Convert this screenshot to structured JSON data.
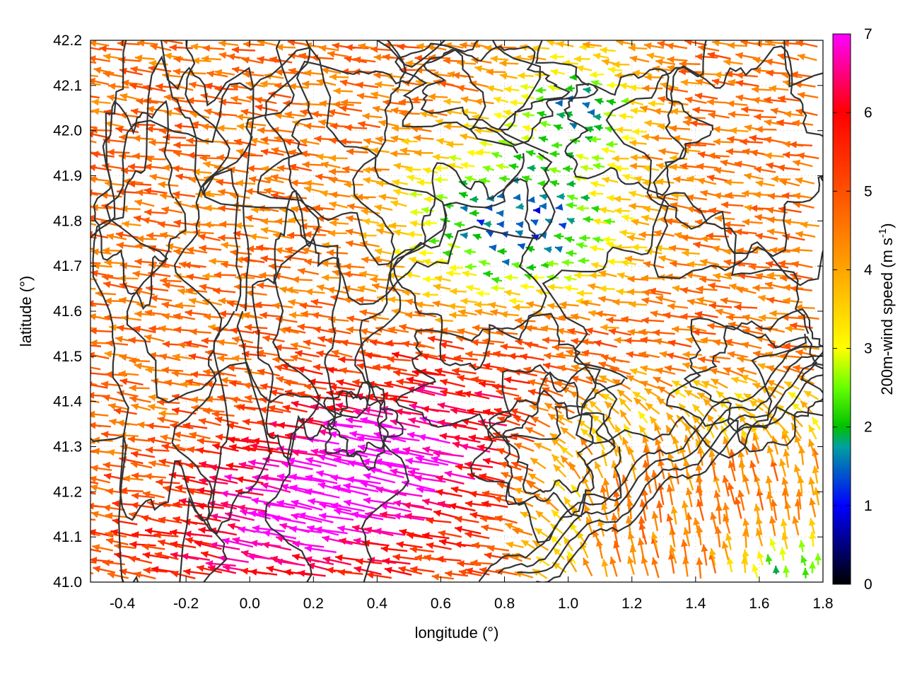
{
  "chart_data": {
    "type": "vector-field",
    "xlabel": "longitude (°)",
    "ylabel": "latitude (°)",
    "xlim": [
      -0.5,
      1.8
    ],
    "ylim": [
      41.0,
      42.2
    ],
    "xticks": [
      "-0.4",
      "-0.2",
      "0.0",
      "0.2",
      "0.4",
      "0.6",
      "0.8",
      "1.0",
      "1.2",
      "1.4",
      "1.6",
      "1.8"
    ],
    "xtick_values": [
      -0.4,
      -0.2,
      0.0,
      0.2,
      0.4,
      0.6,
      0.8,
      1.0,
      1.2,
      1.4,
      1.6,
      1.8
    ],
    "yticks": [
      "41.0",
      "41.1",
      "41.2",
      "41.3",
      "41.4",
      "41.5",
      "41.6",
      "41.7",
      "41.8",
      "41.9",
      "42.0",
      "42.1",
      "42.2"
    ],
    "ytick_values": [
      41.0,
      41.1,
      41.2,
      41.3,
      41.4,
      41.5,
      41.6,
      41.7,
      41.8,
      41.9,
      42.0,
      42.1,
      42.2
    ],
    "grid": true,
    "colorbar": {
      "label_main": "200m-wind speed (m s",
      "label_sup": "-1",
      "label_close": ")",
      "min": 0,
      "max": 7,
      "ticks": [
        "0",
        "1",
        "2",
        "3",
        "4",
        "5",
        "6",
        "7"
      ],
      "palette": [
        "#000000",
        "#0000ff",
        "#00a000",
        "#00ff00",
        "#ffff00",
        "#ffa500",
        "#ff0000",
        "#ff00ff"
      ]
    },
    "wind_field_regions": [
      {
        "region": "west (lon -0.5 to 0.3, lat 41.3 to 42.2)",
        "direction": "westward",
        "speed_ms": 5.2
      },
      {
        "region": "south-central jet (lon 0.0 to 0.8, lat 41.0 to 41.5)",
        "direction": "west-northwestward",
        "speed_ms": 6.9
      },
      {
        "region": "central (lon 0.5 to 1.2, lat 41.6 to 42.0)",
        "direction": "variable",
        "speed_ms": 2.5
      },
      {
        "region": "north-east (lon 1.2 to 1.8, lat 41.7 to 42.2)",
        "direction": "westward",
        "speed_ms": 4.5
      },
      {
        "region": "south-east (lon 0.8 to 1.8, lat 41.0 to 41.4)",
        "direction": "northward",
        "speed_ms": 4.2
      },
      {
        "region": "far south-east coast (lon 1.5 to 1.8, lat 41.0 to 41.1)",
        "direction": "northward",
        "speed_ms": 2.3
      }
    ],
    "contours": "black terrain elevation contour lines"
  }
}
